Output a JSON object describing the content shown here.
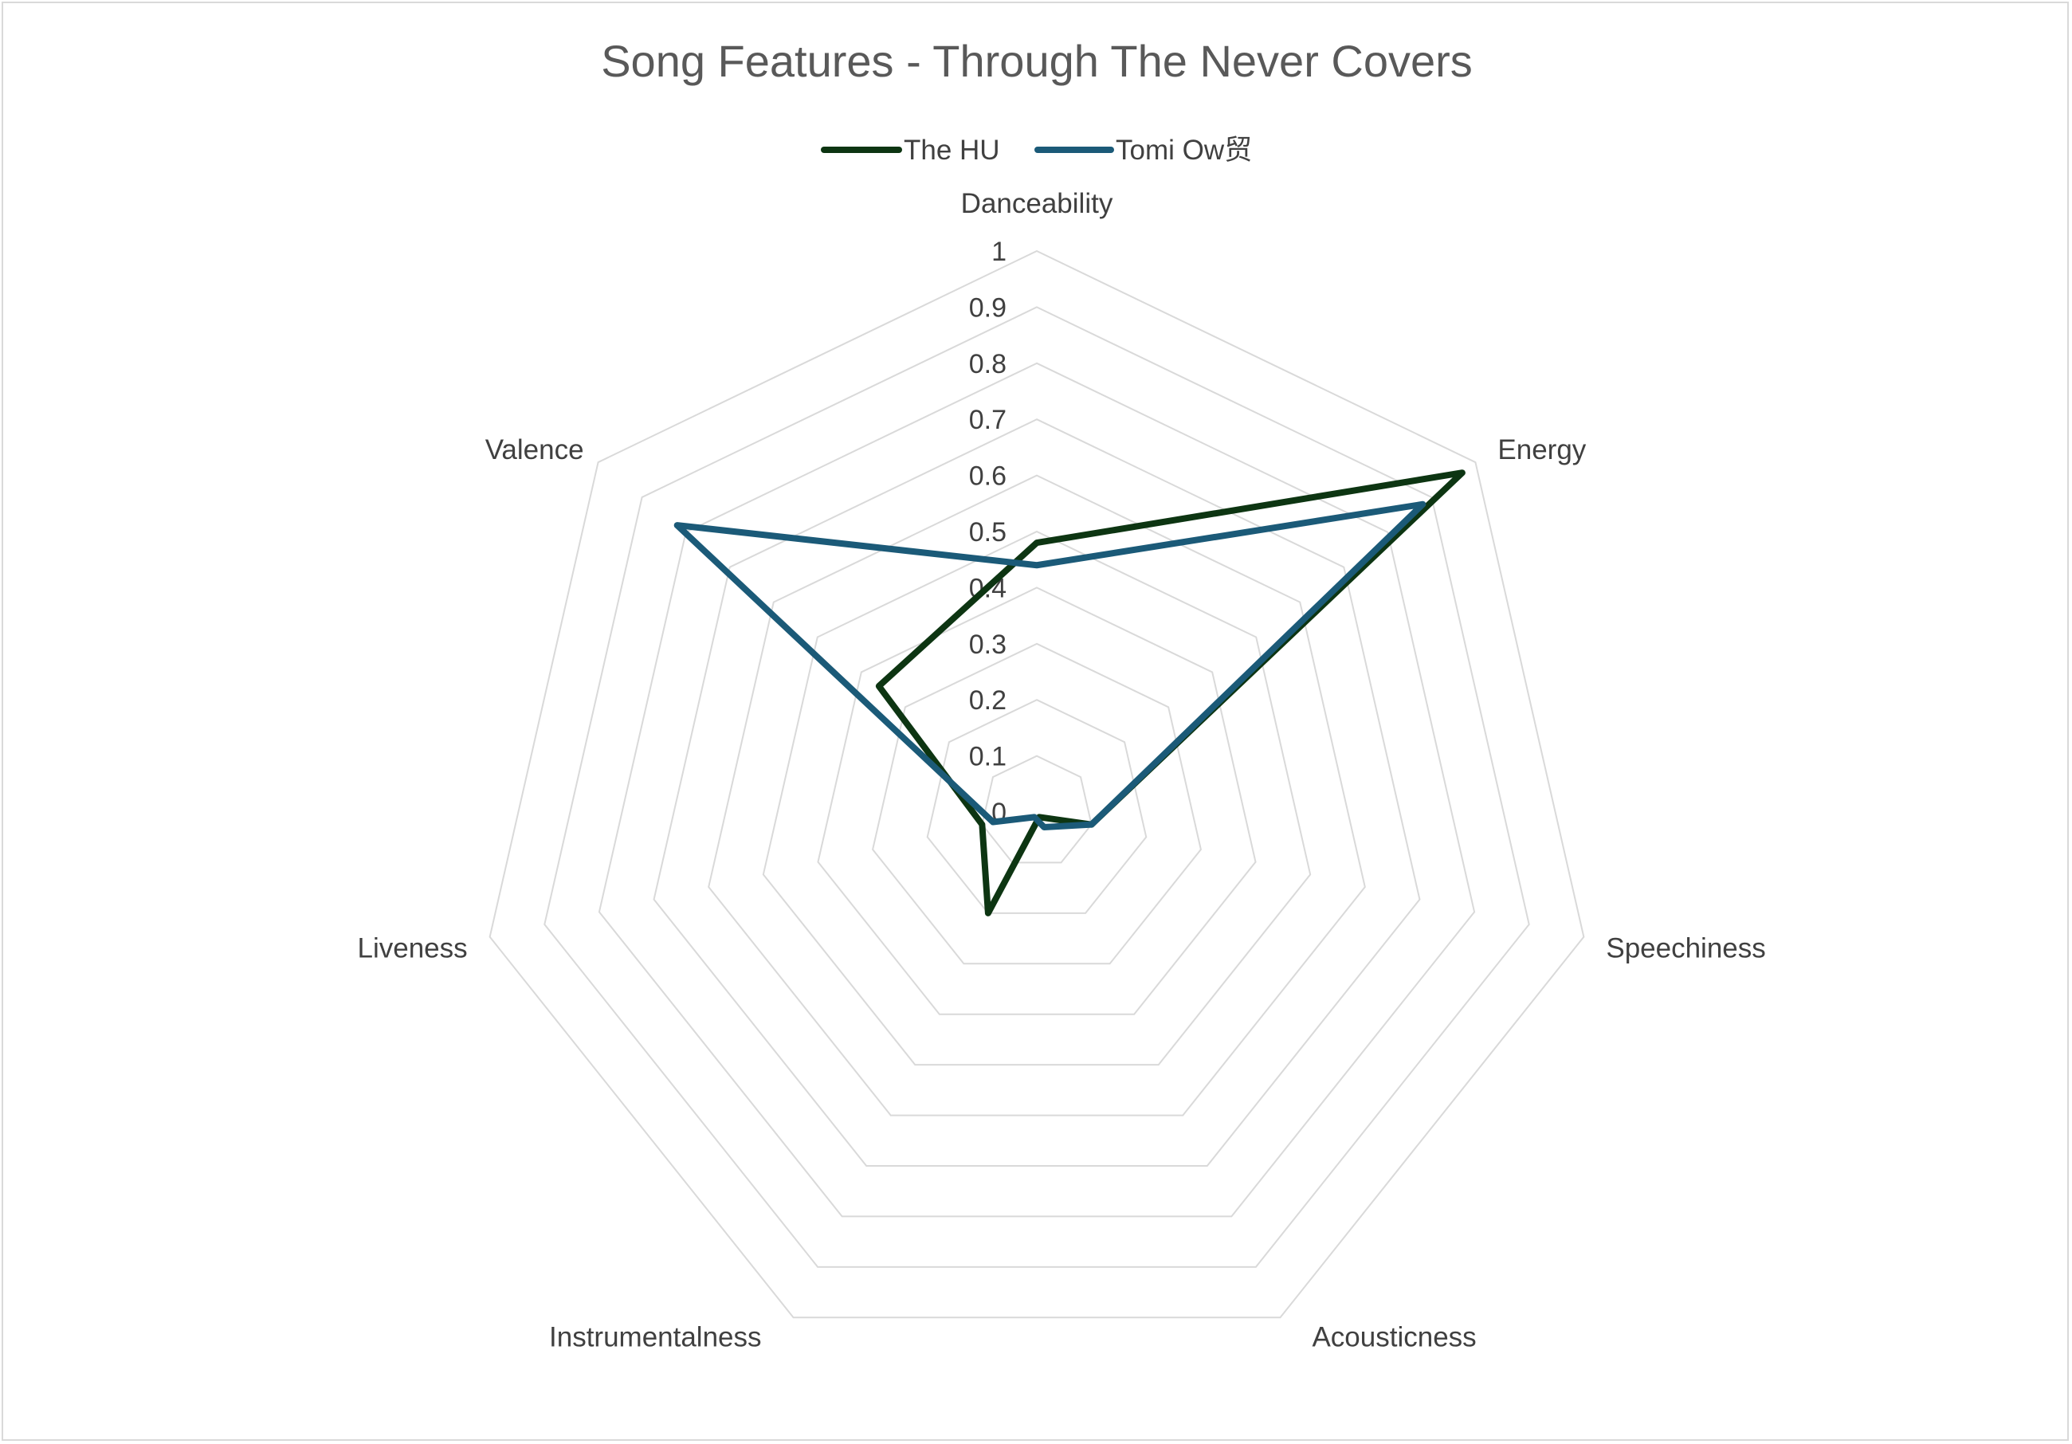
{
  "chart_data": {
    "type": "radar",
    "title": "Song Features - Through The Never Covers",
    "categories": [
      "Danceability",
      "Energy",
      "Speechiness",
      "Acousticness",
      "Instrumentalness",
      "Liveness",
      "Valence"
    ],
    "series": [
      {
        "name": "The HU",
        "color": "#0d3512",
        "values": [
          0.48,
          0.97,
          0.1,
          0.01,
          0.2,
          0.1,
          0.36
        ]
      },
      {
        "name": "Tomi Ow贸",
        "color": "#1b5a78",
        "values": [
          0.44,
          0.88,
          0.1,
          0.03,
          0.01,
          0.08,
          0.82
        ]
      }
    ],
    "rlim": [
      0,
      1
    ],
    "ticks": [
      "0",
      "0.1",
      "0.2",
      "0.3",
      "0.4",
      "0.5",
      "0.6",
      "0.7",
      "0.8",
      "0.9",
      "1"
    ],
    "gridline_color": "#d9d9d9",
    "legend_position": "top",
    "grid": true
  }
}
